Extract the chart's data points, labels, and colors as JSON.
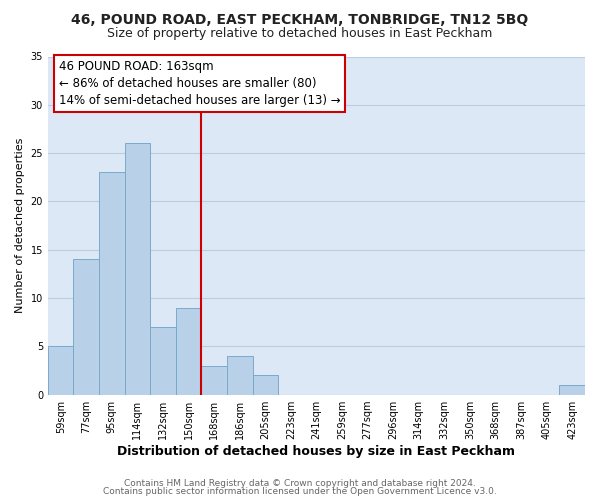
{
  "title": "46, POUND ROAD, EAST PECKHAM, TONBRIDGE, TN12 5BQ",
  "subtitle": "Size of property relative to detached houses in East Peckham",
  "xlabel": "Distribution of detached houses by size in East Peckham",
  "ylabel": "Number of detached properties",
  "footer_line1": "Contains HM Land Registry data © Crown copyright and database right 2024.",
  "footer_line2": "Contains public sector information licensed under the Open Government Licence v3.0.",
  "bin_labels": [
    "59sqm",
    "77sqm",
    "95sqm",
    "114sqm",
    "132sqm",
    "150sqm",
    "168sqm",
    "186sqm",
    "205sqm",
    "223sqm",
    "241sqm",
    "259sqm",
    "277sqm",
    "296sqm",
    "314sqm",
    "332sqm",
    "350sqm",
    "368sqm",
    "387sqm",
    "405sqm",
    "423sqm"
  ],
  "bar_values": [
    5,
    14,
    23,
    26,
    7,
    9,
    3,
    4,
    2,
    0,
    0,
    0,
    0,
    0,
    0,
    0,
    0,
    0,
    0,
    0,
    1
  ],
  "bar_color": "#b8d0e8",
  "bar_edge_color": "#7aaaca",
  "vline_x": 6.0,
  "vline_color": "#cc0000",
  "annotation_title": "46 POUND ROAD: 163sqm",
  "annotation_line2": "← 86% of detached houses are smaller (80)",
  "annotation_line3": "14% of semi-detached houses are larger (13) →",
  "annotation_box_facecolor": "white",
  "annotation_box_edgecolor": "#cc0000",
  "ylim": [
    0,
    35
  ],
  "yticks": [
    0,
    5,
    10,
    15,
    20,
    25,
    30,
    35
  ],
  "fig_background": "#ffffff",
  "plot_background": "#dce8f5",
  "grid_color": "#b8cfe0",
  "title_fontsize": 10,
  "subtitle_fontsize": 9,
  "ylabel_fontsize": 8,
  "xlabel_fontsize": 9,
  "tick_fontsize": 7,
  "footer_fontsize": 6.5,
  "annotation_fontsize": 8.5
}
